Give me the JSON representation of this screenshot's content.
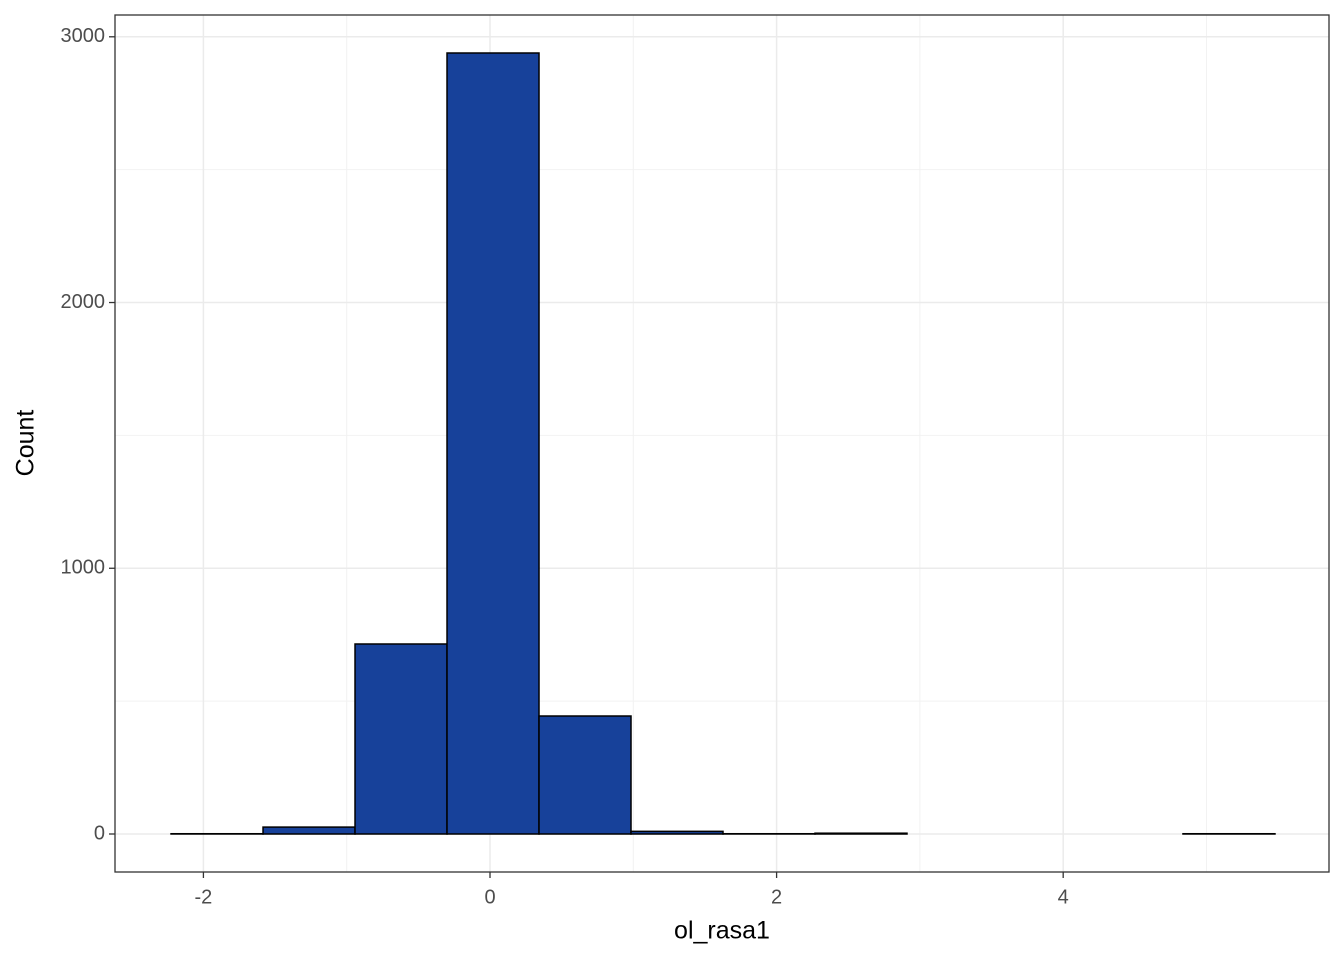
{
  "chart_data": {
    "type": "histogram",
    "x_label": "ol_rasa1",
    "y_label": "Count",
    "bins": [
      -2.226,
      -1.584,
      -0.942,
      -0.3,
      0.342,
      0.984,
      1.626,
      2.268,
      2.91,
      3.552,
      4.194,
      4.836,
      5.478
    ],
    "values": [
      1,
      26,
      715,
      2939,
      444,
      10,
      1,
      3,
      0,
      0,
      0,
      1
    ],
    "color": "#17419a",
    "edge_color": "#000000",
    "xlim": [
      -2.617,
      5.855
    ],
    "ylim": [
      -143,
      3082
    ],
    "xticks": [
      -2,
      0,
      2,
      4
    ],
    "yticks": [
      0,
      1000,
      2000,
      3000
    ],
    "grid": true,
    "minor_grid": true
  }
}
